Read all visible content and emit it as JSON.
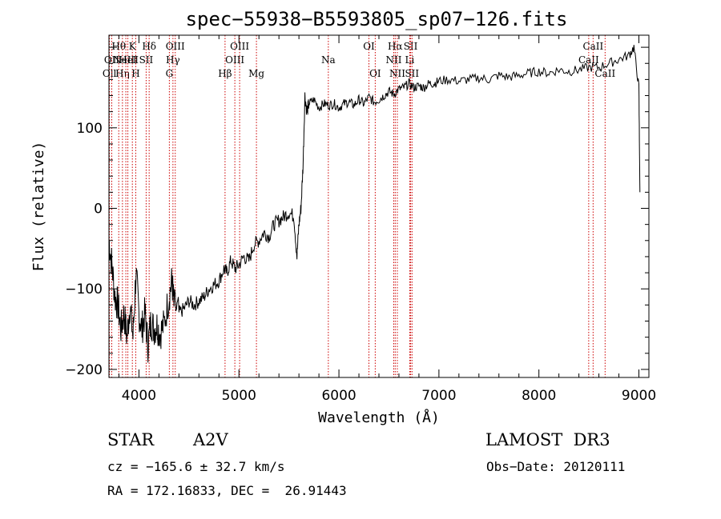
{
  "chart_data": {
    "type": "line",
    "title": "spec−55938−B5593805_sp07−126.fits",
    "xlabel": "Wavelength (Å)",
    "ylabel": "Flux (relative)",
    "xlim": [
      3700,
      9100
    ],
    "ylim": [
      -210,
      215
    ],
    "xticks": [
      4000,
      5000,
      6000,
      7000,
      8000,
      9000
    ],
    "yticks": [
      -200,
      -100,
      0,
      100
    ],
    "grid": false,
    "series": [
      {
        "name": "spectrum",
        "x": [
          3700,
          3730,
          3760,
          3790,
          3820,
          3850,
          3880,
          3910,
          3940,
          3970,
          4000,
          4030,
          4060,
          4090,
          4120,
          4150,
          4180,
          4210,
          4250,
          4300,
          4330,
          4350,
          4400,
          4450,
          4500,
          4550,
          4600,
          4650,
          4700,
          4750,
          4800,
          4850,
          4880,
          4920,
          4960,
          5000,
          5050,
          5100,
          5150,
          5200,
          5250,
          5300,
          5350,
          5400,
          5450,
          5500,
          5550,
          5580,
          5600,
          5620,
          5640,
          5660,
          5680,
          5700,
          5750,
          5800,
          5850,
          5900,
          5950,
          6000,
          6050,
          6100,
          6150,
          6200,
          6250,
          6300,
          6350,
          6400,
          6450,
          6500,
          6550,
          6600,
          6650,
          6700,
          6750,
          6800,
          6850,
          6900,
          6950,
          7000,
          7100,
          7200,
          7300,
          7400,
          7500,
          7600,
          7700,
          7800,
          7900,
          8000,
          8100,
          8200,
          8300,
          8400,
          8500,
          8600,
          8700,
          8800,
          8900,
          8950,
          9000,
          9010
        ],
        "y": [
          -40,
          -70,
          -110,
          -120,
          -150,
          -130,
          -160,
          -120,
          -160,
          -80,
          -130,
          -150,
          -130,
          -170,
          -140,
          -150,
          -145,
          -155,
          -145,
          -110,
          -90,
          -120,
          -130,
          -125,
          -115,
          -120,
          -115,
          -110,
          -100,
          -95,
          -90,
          -75,
          -80,
          -65,
          -75,
          -70,
          -60,
          -65,
          -45,
          -40,
          -30,
          -35,
          -20,
          -15,
          -10,
          -5,
          -10,
          -60,
          -20,
          0,
          50,
          140,
          120,
          130,
          135,
          125,
          130,
          128,
          130,
          125,
          130,
          132,
          128,
          135,
          130,
          138,
          132,
          135,
          140,
          145,
          142,
          148,
          150,
          155,
          150,
          152,
          150,
          155,
          155,
          158,
          160,
          158,
          160,
          162,
          160,
          165,
          163,
          165,
          168,
          170,
          168,
          172,
          170,
          172,
          175,
          175,
          180,
          185,
          190,
          200,
          150,
          20
        ]
      }
    ],
    "lines": [
      {
        "x": 3705,
        "label": "Oll",
        "row": 2
      },
      {
        "x": 3728,
        "label": "OII",
        "row": 1
      },
      {
        "x": 3798,
        "label": "Hθ",
        "row": 0
      },
      {
        "x": 3835,
        "label": "Hη",
        "row": 2
      },
      {
        "x": 3869,
        "label": "NeIII",
        "row": 1
      },
      {
        "x": 3889,
        "label": "HeI",
        "row": 1
      },
      {
        "x": 3934,
        "label": "K",
        "row": 0
      },
      {
        "x": 3968,
        "label": "H",
        "row": 2
      },
      {
        "x": 4072,
        "label": "SII",
        "row": 1
      },
      {
        "x": 4102,
        "label": "Hδ",
        "row": 0
      },
      {
        "x": 4304,
        "label": "G",
        "row": 2
      },
      {
        "x": 4340,
        "label": "Hγ",
        "row": 1
      },
      {
        "x": 4363,
        "label": "OIII",
        "row": 0
      },
      {
        "x": 4861,
        "label": "Hβ",
        "row": 2
      },
      {
        "x": 4959,
        "label": "OIII",
        "row": 1
      },
      {
        "x": 5007,
        "label": "OIII",
        "row": 0
      },
      {
        "x": 5175,
        "label": "Mg",
        "row": 2
      },
      {
        "x": 5894,
        "label": "Na",
        "row": 1
      },
      {
        "x": 6300,
        "label": "OI",
        "row": 0
      },
      {
        "x": 6363,
        "label": "OI",
        "row": 2
      },
      {
        "x": 6548,
        "label": "NII",
        "row": 1
      },
      {
        "x": 6563,
        "label": "Hα",
        "row": 0
      },
      {
        "x": 6584,
        "label": "NII",
        "row": 2
      },
      {
        "x": 6708,
        "label": "Li",
        "row": 1
      },
      {
        "x": 6717,
        "label": "SII",
        "row": 0
      },
      {
        "x": 6731,
        "label": "SII",
        "row": 2
      },
      {
        "x": 8498,
        "label": "CaII",
        "row": 1
      },
      {
        "x": 8542,
        "label": "CaII",
        "row": 0
      },
      {
        "x": 8662,
        "label": "CaII",
        "row": 2
      }
    ]
  },
  "info": {
    "object_class": "STAR",
    "subclass": "A2V",
    "survey": "LAMOST  DR3",
    "cz": "cz = −165.6 ± 32.7 km/s",
    "obs_date": "Obs−Date: 20120111",
    "radec": "RA = 172.16833, DEC =  26.91443"
  },
  "colors": {
    "spectrum": "#000000",
    "line_marker": "#cc0000",
    "axes": "#000000"
  }
}
